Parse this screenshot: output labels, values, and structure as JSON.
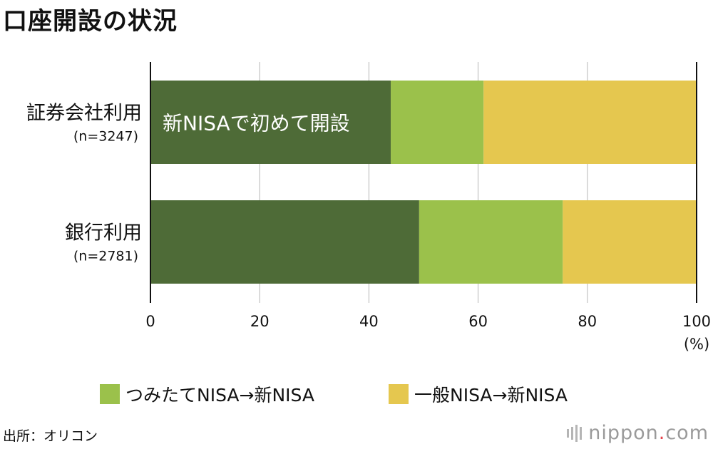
{
  "title": "口座開設の状況",
  "source": "出所：オリコン",
  "brand": {
    "name": "nippon",
    "dot": ".",
    "tld": "com"
  },
  "chart_data": {
    "type": "bar",
    "orientation": "horizontal",
    "stacked": true,
    "title": "口座開設の状況",
    "categories": [
      {
        "label": "証券会社利用",
        "sublabel": "(n=3247)"
      },
      {
        "label": "銀行利用",
        "sublabel": "(n=2781)"
      }
    ],
    "series": [
      {
        "name": "新NISAで初めて開設",
        "color": "#4e6b37",
        "values": [
          44,
          49.2
        ]
      },
      {
        "name": "つみたてNISA→新NISA",
        "color": "#9bc14b",
        "values": [
          17,
          26.3
        ]
      },
      {
        "name": "一般NISA→新NISA",
        "color": "#e5c74f",
        "values": [
          39,
          24.5
        ]
      }
    ],
    "xlim": [
      0,
      100
    ],
    "xticks": [
      "0",
      "20",
      "40",
      "60",
      "80",
      "100"
    ],
    "xunit": "(%)",
    "grid": true,
    "legend_position": "bottom",
    "legend": [
      "つみたてNISA→新NISA",
      "一般NISA→新NISA"
    ],
    "annotation": "新NISAで初めて開設"
  }
}
